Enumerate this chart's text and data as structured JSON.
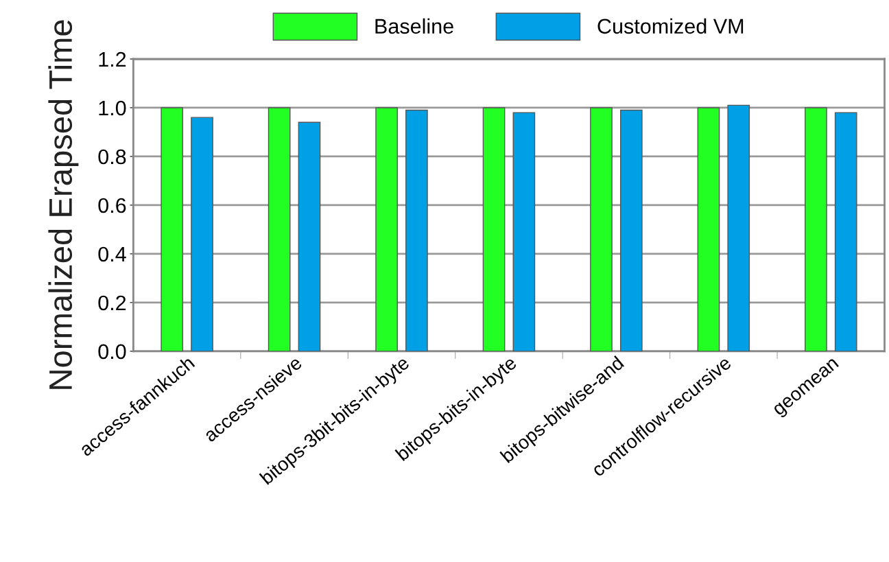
{
  "chart_data": {
    "type": "bar",
    "ylabel": "Normalized Erapsed Time",
    "categories": [
      "access-fannkuch",
      "access-nsieve",
      "bitops-3bit-bits-in-byte",
      "bitops-bits-in-byte",
      "bitops-bitwise-and",
      "controlflow-recursive",
      "geomean"
    ],
    "series": [
      {
        "name": "Baseline",
        "color": "#22ff22",
        "values": [
          1.0,
          1.0,
          1.0,
          1.0,
          1.0,
          1.0,
          1.0
        ]
      },
      {
        "name": "Customized VM",
        "color": "#00a0e6",
        "values": [
          0.96,
          0.94,
          0.99,
          0.98,
          0.99,
          1.01,
          0.98
        ]
      }
    ],
    "ylim": [
      0,
      1.2
    ],
    "yticks": [
      {
        "value": 0,
        "label": "0.0"
      },
      {
        "value": 0.2,
        "label": "0.2"
      },
      {
        "value": 0.4,
        "label": "0.4"
      },
      {
        "value": 0.6,
        "label": "0.6"
      },
      {
        "value": 0.8,
        "label": "0.8"
      },
      {
        "value": 1.0,
        "label": "1.0"
      },
      {
        "value": 1.2,
        "label": "1.2"
      }
    ],
    "grid": "y",
    "legend": "top"
  }
}
